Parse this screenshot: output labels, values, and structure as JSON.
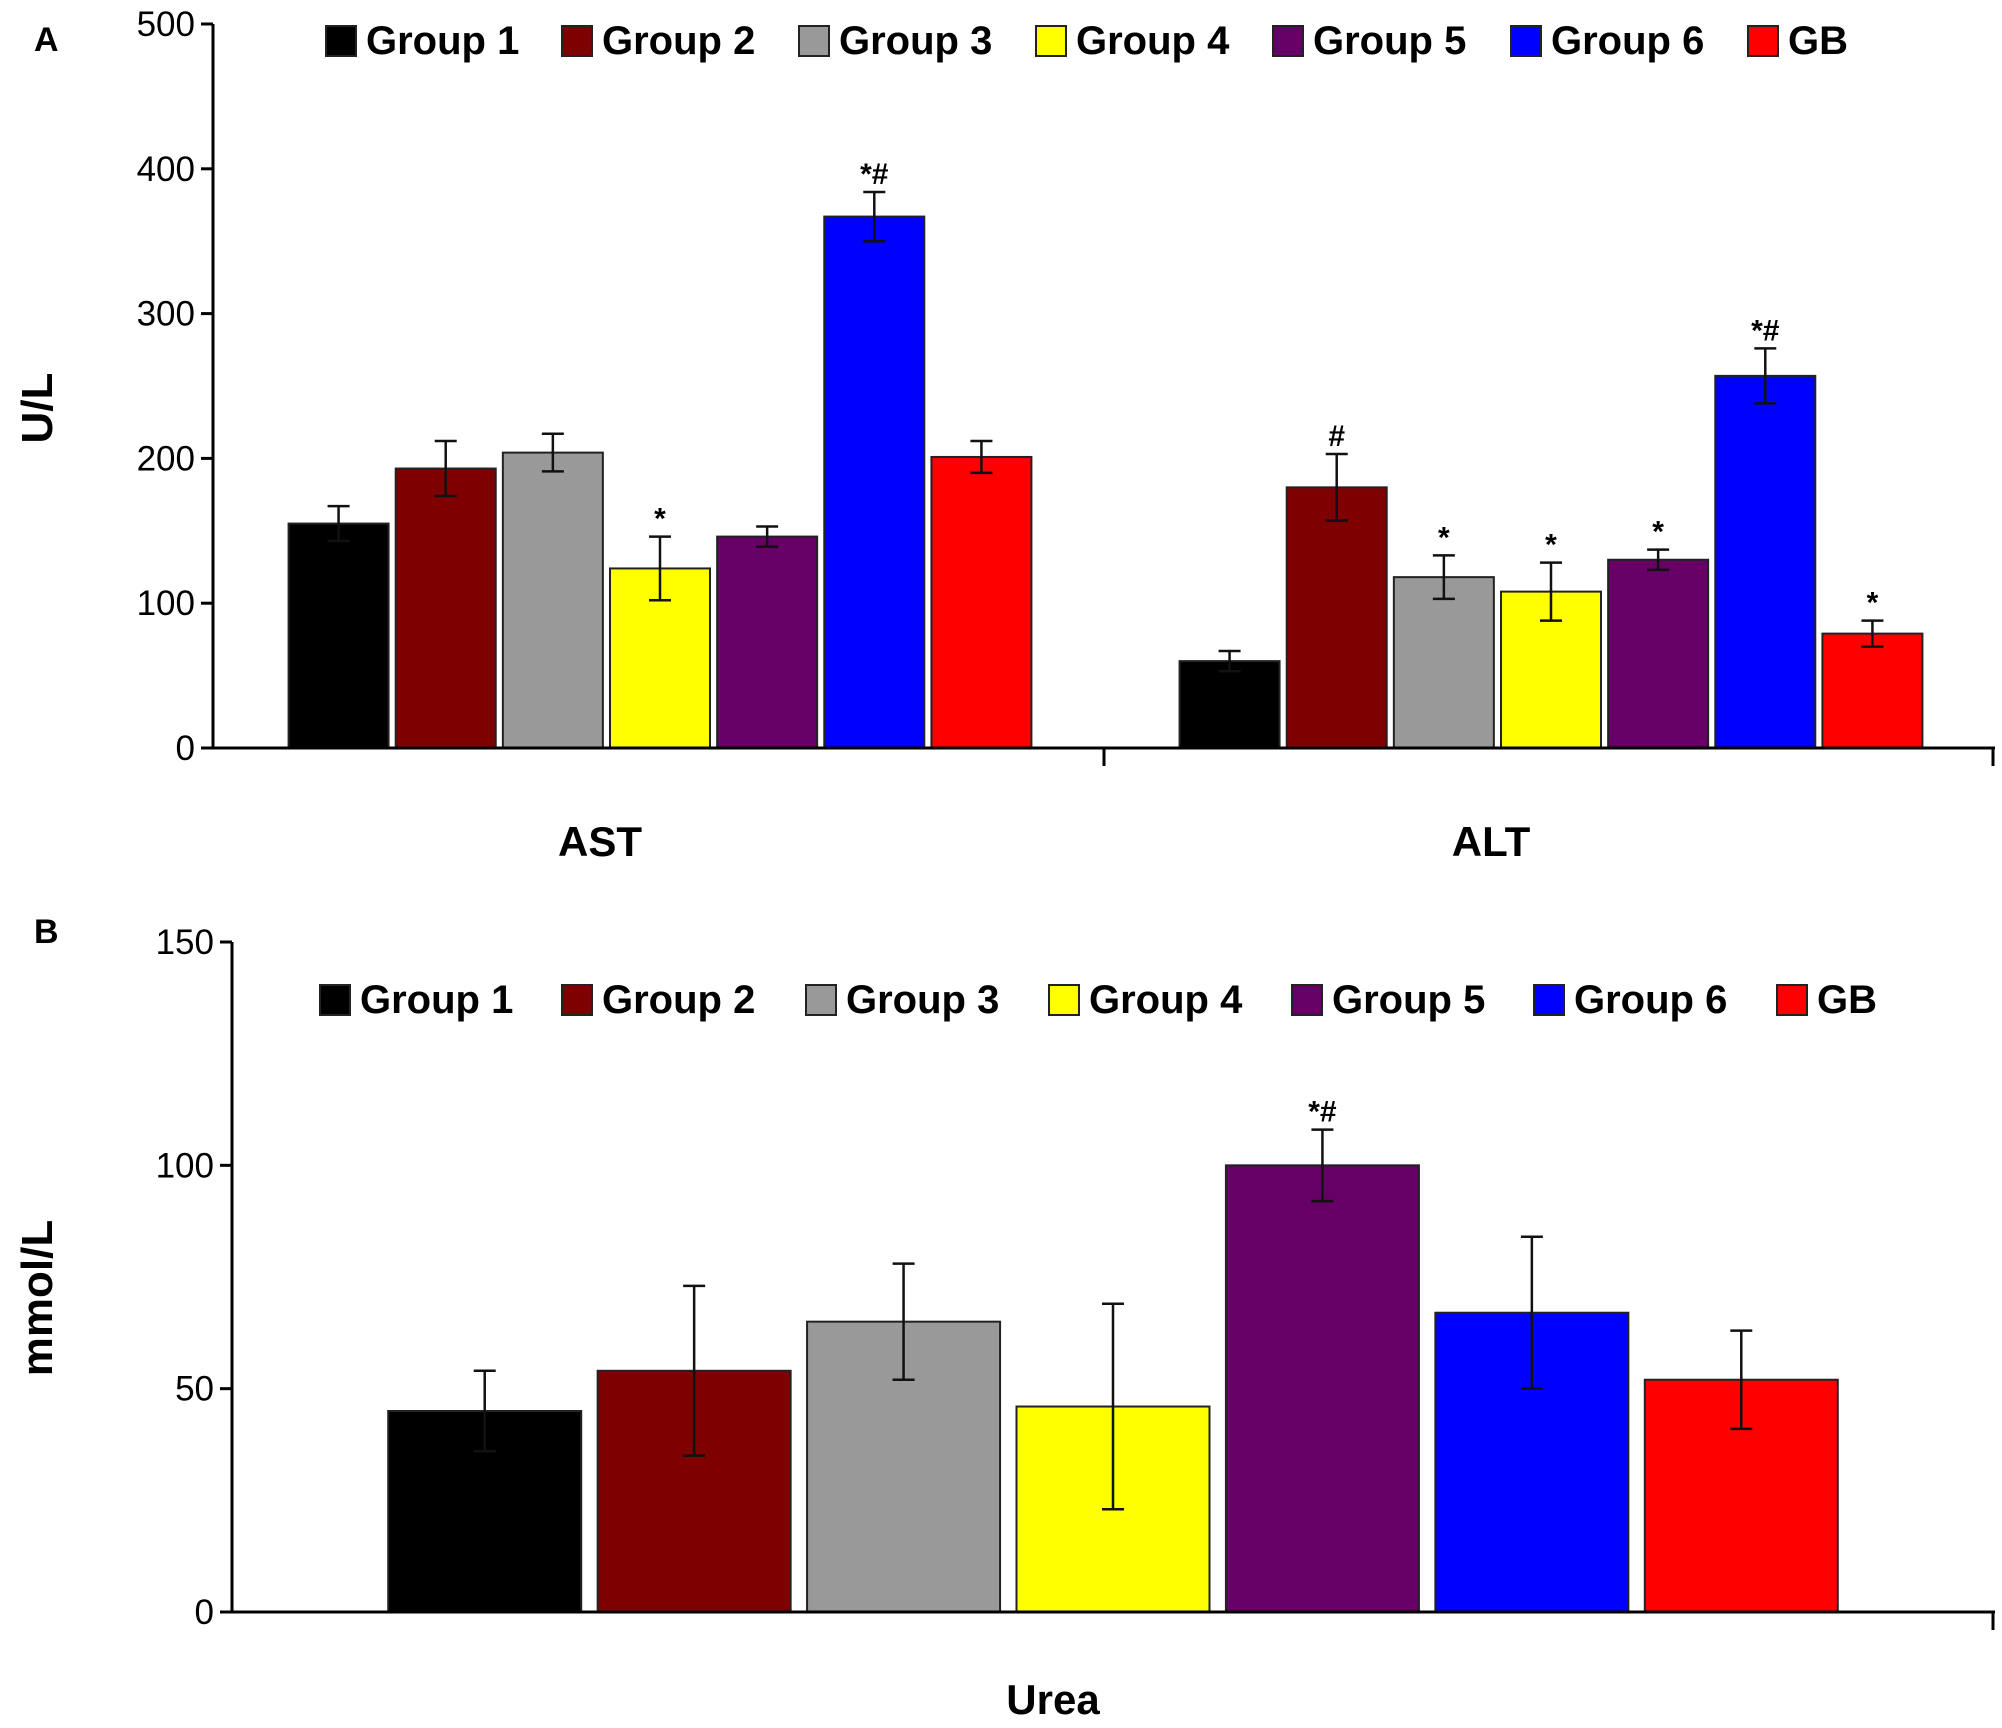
{
  "colors": {
    "Group 1": "#000000",
    "Group 2": "#7f0000",
    "Group 3": "#999999",
    "Group 4": "#ffff00",
    "Group 5": "#660066",
    "Group 6": "#0000ff",
    "GB": "#ff0000"
  },
  "chart_data": [
    {
      "panel_label": "A",
      "type": "bar",
      "title": "",
      "xlabel": "",
      "ylabel": "U/L",
      "ylim": [
        0,
        500
      ],
      "yticks": [
        0,
        100,
        200,
        300,
        400,
        500
      ],
      "legend": "top",
      "grid": false,
      "categories": [
        "AST",
        "ALT"
      ],
      "series": [
        {
          "name": "Group 1",
          "values": [
            155,
            60
          ],
          "errors": [
            12,
            7
          ],
          "marks": [
            "",
            ""
          ]
        },
        {
          "name": "Group 2",
          "values": [
            193,
            180
          ],
          "errors": [
            19,
            23
          ],
          "marks": [
            "",
            "#"
          ]
        },
        {
          "name": "Group 3",
          "values": [
            204,
            118
          ],
          "errors": [
            13,
            15
          ],
          "marks": [
            "",
            "*"
          ]
        },
        {
          "name": "Group 4",
          "values": [
            124,
            108
          ],
          "errors": [
            22,
            20
          ],
          "marks": [
            "*",
            "*"
          ]
        },
        {
          "name": "Group 5",
          "values": [
            146,
            130
          ],
          "errors": [
            7,
            7
          ],
          "marks": [
            "",
            "*"
          ]
        },
        {
          "name": "Group 6",
          "values": [
            367,
            257
          ],
          "errors": [
            17,
            19
          ],
          "marks": [
            "*#",
            "*#"
          ]
        },
        {
          "name": "GB",
          "values": [
            201,
            79
          ],
          "errors": [
            11,
            9
          ],
          "marks": [
            "",
            "*"
          ]
        }
      ]
    },
    {
      "panel_label": "B",
      "type": "bar",
      "title": "",
      "xlabel": "",
      "ylabel": "mmol/L",
      "ylim": [
        0,
        150
      ],
      "yticks": [
        0,
        50,
        100,
        150
      ],
      "legend": "top",
      "grid": false,
      "categories": [
        "Urea"
      ],
      "series": [
        {
          "name": "Group 1",
          "values": [
            45
          ],
          "errors": [
            9
          ],
          "marks": [
            ""
          ]
        },
        {
          "name": "Group 2",
          "values": [
            54
          ],
          "errors": [
            19
          ],
          "marks": [
            ""
          ]
        },
        {
          "name": "Group 3",
          "values": [
            65
          ],
          "errors": [
            13
          ],
          "marks": [
            ""
          ]
        },
        {
          "name": "Group 4",
          "values": [
            46
          ],
          "errors": [
            23
          ],
          "marks": [
            ""
          ]
        },
        {
          "name": "Group 5",
          "values": [
            100
          ],
          "errors": [
            8
          ],
          "marks": [
            "*#"
          ]
        },
        {
          "name": "Group 6",
          "values": [
            67
          ],
          "errors": [
            17
          ],
          "marks": [
            ""
          ]
        },
        {
          "name": "GB",
          "values": [
            52
          ],
          "errors": [
            11
          ],
          "marks": [
            ""
          ]
        }
      ]
    }
  ]
}
